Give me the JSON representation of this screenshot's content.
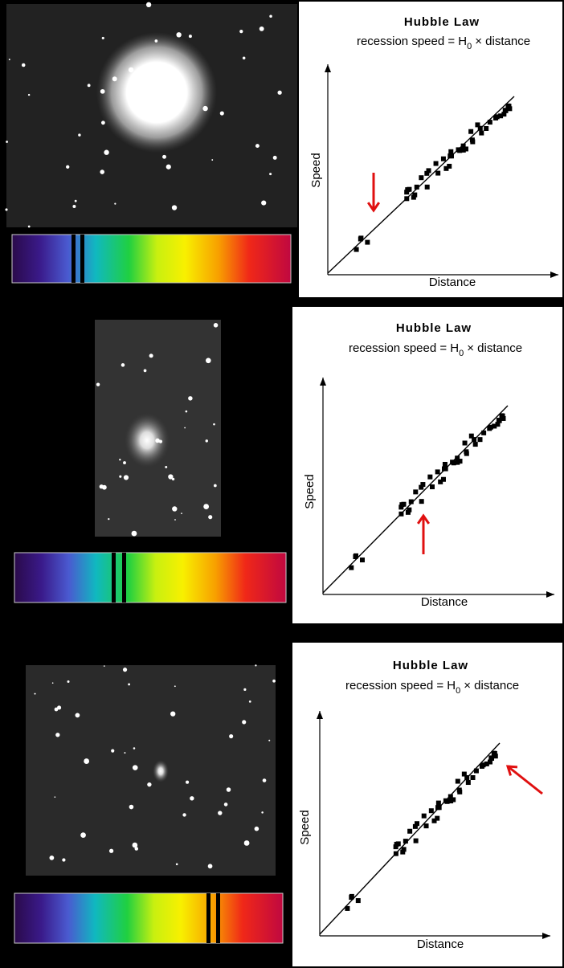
{
  "panels": [
    {
      "title": "Hubble Law",
      "formula": "recession speed = H",
      "subscript": "0",
      "formula_end": "× distance",
      "y_label": "Speed",
      "x_label": "Distance"
    },
    {
      "title": "Hubble Law",
      "formula": "recession speed = H",
      "subscript": "0",
      "formula_end": "× distance",
      "y_label": "Speed",
      "x_label": "Distance"
    },
    {
      "title": "Hubble Law",
      "formula": "recession speed = H",
      "subscript": "0",
      "formula_end": "× distance",
      "y_label": "Speed",
      "x_label": "Distance"
    }
  ]
}
